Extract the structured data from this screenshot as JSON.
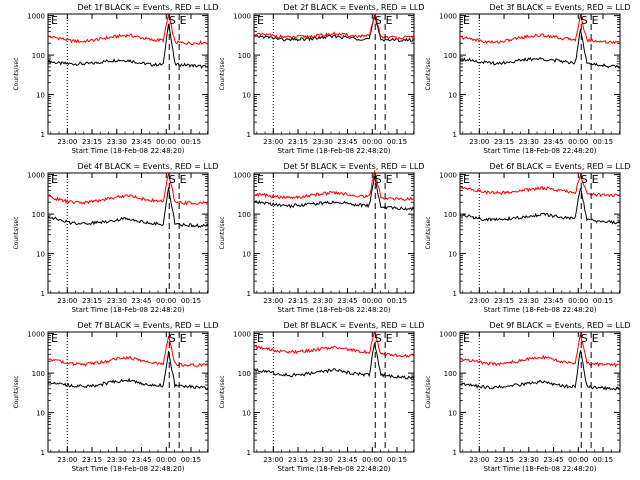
{
  "figure": {
    "xtick_labels": [
      "23:00",
      "23:15",
      "23:30",
      "23:45",
      "00:00",
      "00:15"
    ],
    "ytick_labels": [
      "1",
      "10",
      "100",
      "1000"
    ],
    "xlabel": "Start Time (18-Feb-08 22:48:20)",
    "ylabel": "Counts/sec",
    "marker_labels": {
      "start": "S",
      "end": "E"
    }
  },
  "colors": {
    "events": "#000000",
    "lld": "#ff0000",
    "axes": "#000000"
  },
  "chart_data": [
    {
      "type": "line",
      "title": "Det 1f BLACK = Events, RED = LLD",
      "yscale": "log",
      "ylim": [
        1,
        1100
      ],
      "x_minutes_after_start": {
        "min": 0,
        "max": 97
      },
      "flare_peak_x": 73,
      "s_marker_x": 73.5,
      "e_marker_x": 79.5,
      "dotted_x": 11.7,
      "series": [
        {
          "name": "BLACK = Events",
          "color": "#000000",
          "values": [
            70,
            62,
            60,
            60,
            62,
            70,
            75,
            73,
            63,
            57,
            58,
            700,
            58,
            55,
            50
          ]
        },
        {
          "name": "RED = LLD",
          "color": "#ff0000",
          "values": [
            290,
            270,
            230,
            220,
            240,
            270,
            300,
            320,
            280,
            240,
            240,
            1100,
            210,
            200,
            210
          ]
        }
      ]
    },
    {
      "type": "line",
      "title": "Det 2f BLACK = Events, RED = LLD",
      "yscale": "log",
      "ylim": [
        1,
        1100
      ],
      "x_minutes_after_start": {
        "min": 0,
        "max": 97
      },
      "flare_peak_x": 73,
      "s_marker_x": 73.5,
      "e_marker_x": 79.5,
      "dotted_x": 11.7,
      "series": [
        {
          "name": "BLACK = Events",
          "color": "#000000",
          "values": [
            300,
            290,
            260,
            240,
            250,
            260,
            280,
            300,
            280,
            260,
            260,
            950,
            250,
            240,
            240
          ]
        },
        {
          "name": "RED = LLD",
          "color": "#ff0000",
          "values": [
            330,
            330,
            300,
            280,
            290,
            300,
            320,
            350,
            320,
            300,
            300,
            1100,
            290,
            280,
            280
          ]
        }
      ]
    },
    {
      "type": "line",
      "title": "Det 3f BLACK = Events, RED = LLD",
      "yscale": "log",
      "ylim": [
        1,
        1100
      ],
      "x_minutes_after_start": {
        "min": 0,
        "max": 97
      },
      "flare_peak_x": 73,
      "s_marker_x": 73.5,
      "e_marker_x": 79.5,
      "dotted_x": 11.7,
      "series": [
        {
          "name": "BLACK = Events",
          "color": "#000000",
          "values": [
            80,
            75,
            65,
            62,
            65,
            72,
            78,
            80,
            75,
            68,
            65,
            500,
            60,
            55,
            50
          ]
        },
        {
          "name": "RED = LLD",
          "color": "#ff0000",
          "values": [
            280,
            260,
            220,
            210,
            230,
            270,
            300,
            320,
            300,
            260,
            250,
            1000,
            240,
            220,
            210
          ]
        }
      ]
    },
    {
      "type": "line",
      "title": "Det 4f BLACK = Events, RED = LLD",
      "yscale": "log",
      "ylim": [
        1,
        1100
      ],
      "x_minutes_after_start": {
        "min": 0,
        "max": 97
      },
      "flare_peak_x": 73,
      "s_marker_x": 73.5,
      "e_marker_x": 79.5,
      "dotted_x": 11.7,
      "series": [
        {
          "name": "BLACK = Events",
          "color": "#000000",
          "values": [
            90,
            70,
            60,
            58,
            60,
            65,
            72,
            78,
            65,
            58,
            55,
            500,
            55,
            52,
            50
          ]
        },
        {
          "name": "RED = LLD",
          "color": "#ff0000",
          "values": [
            280,
            230,
            200,
            195,
            210,
            240,
            270,
            300,
            250,
            220,
            210,
            1100,
            200,
            190,
            190
          ]
        }
      ]
    },
    {
      "type": "line",
      "title": "Det 5f BLACK = Events, RED = LLD",
      "yscale": "log",
      "ylim": [
        1,
        1100
      ],
      "x_minutes_after_start": {
        "min": 0,
        "max": 97
      },
      "flare_peak_x": 73,
      "s_marker_x": 73.5,
      "e_marker_x": 79.5,
      "dotted_x": 11.7,
      "series": [
        {
          "name": "BLACK = Events",
          "color": "#000000",
          "values": [
            200,
            190,
            170,
            160,
            170,
            180,
            190,
            200,
            190,
            170,
            165,
            900,
            150,
            140,
            135
          ]
        },
        {
          "name": "RED = LLD",
          "color": "#ff0000",
          "values": [
            320,
            300,
            270,
            260,
            270,
            300,
            330,
            350,
            320,
            290,
            280,
            1200,
            260,
            240,
            240
          ]
        }
      ]
    },
    {
      "type": "line",
      "title": "Det 6f BLACK = Events, RED = LLD",
      "yscale": "log",
      "ylim": [
        1,
        1100
      ],
      "x_minutes_after_start": {
        "min": 0,
        "max": 97
      },
      "flare_peak_x": 73,
      "s_marker_x": 73.5,
      "e_marker_x": 79.5,
      "dotted_x": 11.7,
      "series": [
        {
          "name": "BLACK = Events",
          "color": "#000000",
          "values": [
            95,
            85,
            75,
            72,
            75,
            80,
            85,
            100,
            90,
            80,
            78,
            500,
            70,
            65,
            60
          ]
        },
        {
          "name": "RED = LLD",
          "color": "#ff0000",
          "values": [
            450,
            430,
            360,
            340,
            350,
            380,
            420,
            460,
            430,
            380,
            360,
            1000,
            320,
            300,
            300
          ]
        }
      ]
    },
    {
      "type": "line",
      "title": "Det 7f BLACK = Events, RED = LLD",
      "yscale": "log",
      "ylim": [
        1,
        1100
      ],
      "x_minutes_after_start": {
        "min": 0,
        "max": 97
      },
      "flare_peak_x": 73,
      "s_marker_x": 73.5,
      "e_marker_x": 79.5,
      "dotted_x": 11.7,
      "series": [
        {
          "name": "BLACK = Events",
          "color": "#000000",
          "values": [
            60,
            55,
            48,
            46,
            48,
            55,
            62,
            66,
            55,
            50,
            48,
            350,
            48,
            45,
            42
          ]
        },
        {
          "name": "RED = LLD",
          "color": "#ff0000",
          "values": [
            230,
            200,
            170,
            165,
            175,
            200,
            230,
            250,
            210,
            180,
            175,
            900,
            170,
            160,
            160
          ]
        }
      ]
    },
    {
      "type": "line",
      "title": "Det 8f BLACK = Events, RED = LLD",
      "yscale": "log",
      "ylim": [
        1,
        1100
      ],
      "x_minutes_after_start": {
        "min": 0,
        "max": 97
      },
      "flare_peak_x": 73,
      "s_marker_x": 73.5,
      "e_marker_x": 79.5,
      "dotted_x": 11.7,
      "series": [
        {
          "name": "BLACK = Events",
          "color": "#000000",
          "values": [
            120,
            110,
            95,
            88,
            90,
            100,
            110,
            120,
            105,
            95,
            90,
            600,
            88,
            80,
            75
          ]
        },
        {
          "name": "RED = LLD",
          "color": "#ff0000",
          "values": [
            450,
            420,
            360,
            340,
            350,
            380,
            420,
            460,
            400,
            360,
            340,
            1100,
            300,
            280,
            270
          ]
        }
      ]
    },
    {
      "type": "line",
      "title": "Det 9f BLACK = Events, RED = LLD",
      "yscale": "log",
      "ylim": [
        1,
        1100
      ],
      "x_minutes_after_start": {
        "min": 0,
        "max": 97
      },
      "flare_peak_x": 73,
      "s_marker_x": 73.5,
      "e_marker_x": 79.5,
      "dotted_x": 11.7,
      "series": [
        {
          "name": "BLACK = Events",
          "color": "#000000",
          "values": [
            55,
            50,
            45,
            43,
            45,
            50,
            55,
            60,
            52,
            46,
            45,
            420,
            45,
            42,
            40
          ]
        },
        {
          "name": "RED = LLD",
          "color": "#ff0000",
          "values": [
            230,
            210,
            180,
            170,
            180,
            200,
            230,
            260,
            220,
            190,
            180,
            1000,
            175,
            165,
            160
          ]
        }
      ]
    }
  ]
}
